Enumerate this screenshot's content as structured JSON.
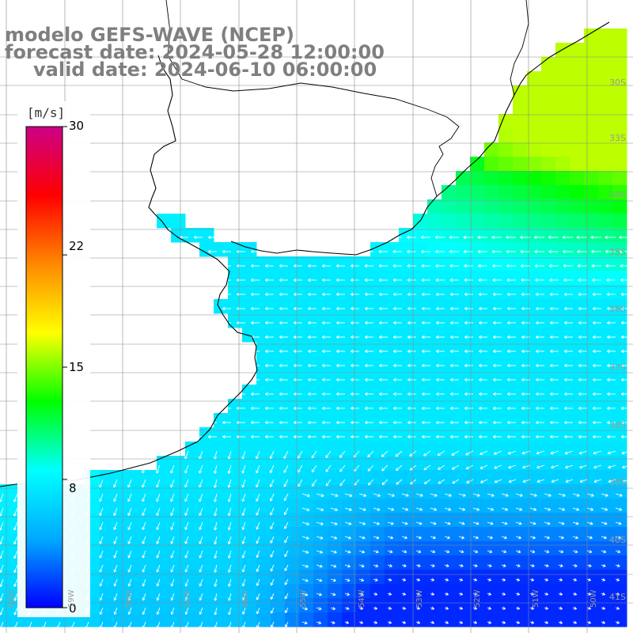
{
  "title": {
    "model": "modelo GEFS-WAVE (NCEP)",
    "forecast": "forecast date: 2024-05-28 12:00:00",
    "valid": "valid date: 2024-06-10 06:00:00"
  },
  "colorbar": {
    "unit": "[m/s]",
    "ticks": [
      "30",
      "22",
      "15",
      "8",
      "0"
    ],
    "tick_values": [
      30,
      22,
      15,
      8,
      0
    ],
    "range": [
      0,
      30
    ],
    "stops": [
      "#0000ff",
      "#00aaff",
      "#00ffff",
      "#00ff00",
      "#ffff00",
      "#ff8800",
      "#ff0000",
      "#cc0088"
    ]
  },
  "grid": {
    "lat_labels": [
      "30S",
      "33S",
      "34S",
      "35S",
      "36S",
      "37S",
      "38S",
      "39S",
      "40S",
      "41S"
    ],
    "lon_labels": [
      "60W",
      "59W",
      "58W",
      "57W",
      "56W",
      "55W",
      "54W",
      "53W",
      "52W",
      "51W",
      "50W"
    ]
  },
  "legend_colors": {
    "land": "#ffffff",
    "coastline": "#000000",
    "gridline": "#909090",
    "arrow": "#ffffff"
  }
}
